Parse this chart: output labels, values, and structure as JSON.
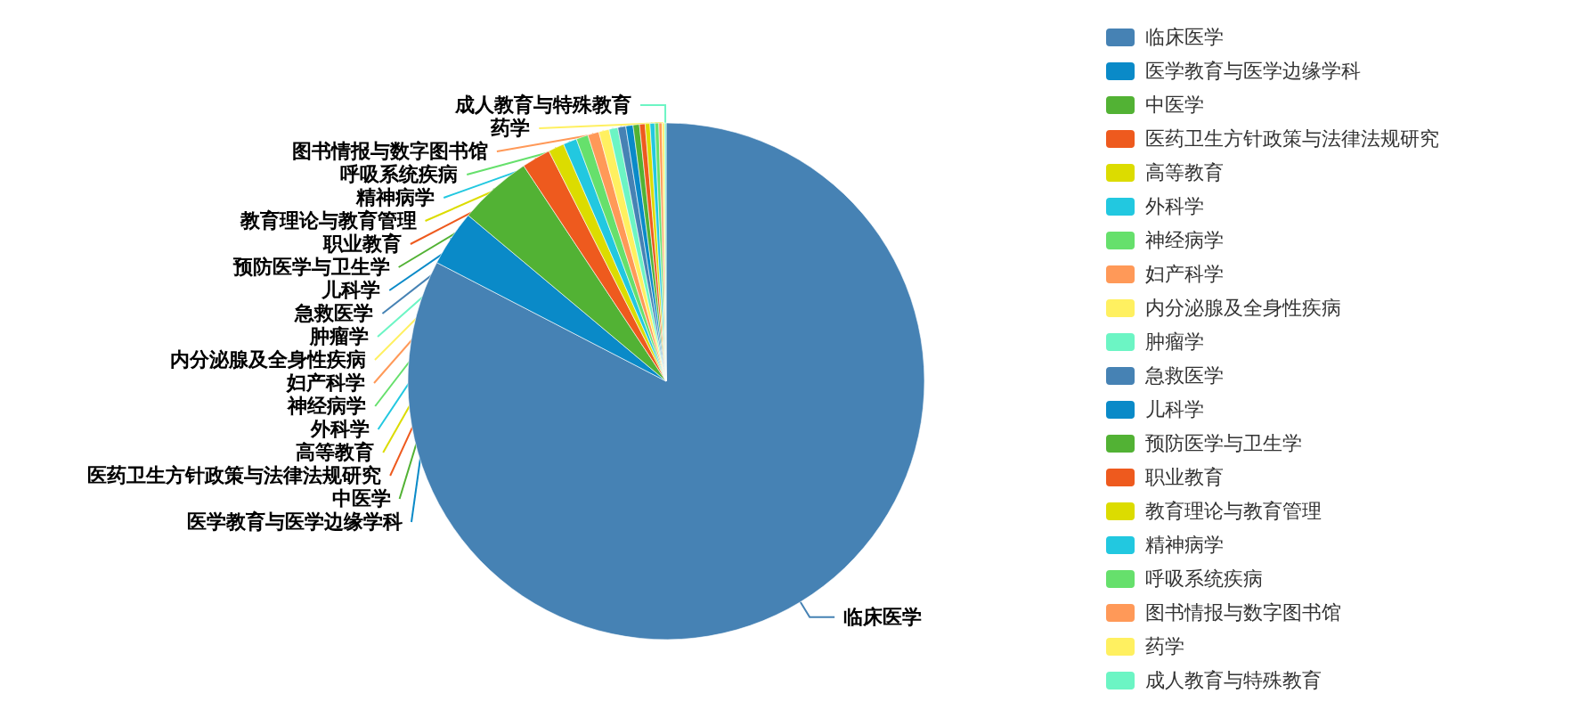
{
  "chart_data": {
    "type": "pie",
    "legend": "right",
    "categories": [
      "临床医学",
      "医学教育与医学边缘学科",
      "中医学",
      "医药卫生方针政策与法律法规研究",
      "高等教育",
      "外科学",
      "神经病学",
      "妇产科学",
      "内分泌腺及全身性疾病",
      "肿瘤学",
      "急救医学",
      "儿科学",
      "预防医学与卫生学",
      "职业教育",
      "教育理论与教育管理",
      "精神病学",
      "呼吸系统疾病",
      "图书情报与数字图书馆",
      "药学",
      "成人教育与特殊教育"
    ],
    "values": [
      82.6,
      3.5,
      4.6,
      1.8,
      1.0,
      0.85,
      0.75,
      0.7,
      0.65,
      0.55,
      0.5,
      0.45,
      0.4,
      0.35,
      0.3,
      0.3,
      0.25,
      0.2,
      0.15,
      0.1
    ],
    "colors": [
      "#4682b4",
      "#0a8ac8",
      "#52b234",
      "#ee5a1e",
      "#dcdc00",
      "#22c8e0",
      "#66e06c",
      "#ff9958",
      "#fff060",
      "#6cf5c4",
      "#4682b4",
      "#0a8ac8",
      "#52b234",
      "#ee5a1e",
      "#dcdc00",
      "#22c8e0",
      "#66e06c",
      "#ff9958",
      "#fff060",
      "#6cf5c4"
    ]
  }
}
